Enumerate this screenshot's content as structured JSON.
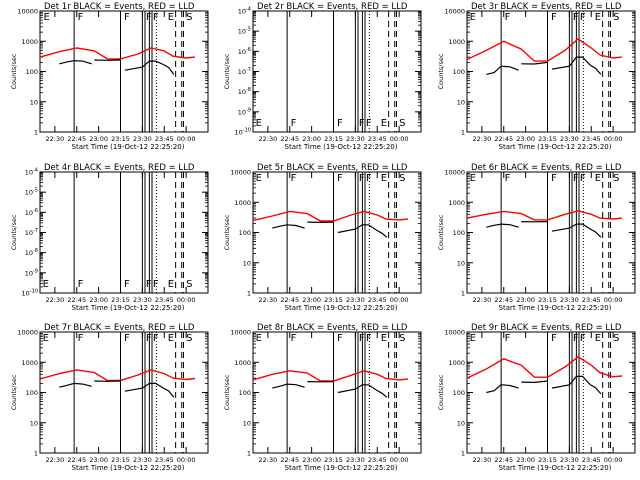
{
  "colors": {
    "background": "#ffffff",
    "events": "#000000",
    "lld": "#ff0000"
  },
  "time_ticks": [
    "22:30",
    "22:45",
    "23:00",
    "23:15",
    "23:30",
    "23:45",
    "00:00"
  ],
  "shared": {
    "xlabel": "Start Time (19-Oct-12 22:25:20)",
    "ylabel": "Counts/sec",
    "legend": "BLACK = Events, RED = LLD",
    "flare_markers": {
      "F": [
        22.72,
        23.25,
        23.5,
        23.58
      ],
      "E": [
        23.75
      ],
      "S": [
        23.97
      ],
      "dashed_lines": [
        23.88,
        23.95,
        23.97
      ],
      "dotted_line": 23.61
    }
  },
  "chart_data": [
    {
      "type": "line",
      "title": "Det 1r",
      "xlim": [
        22.33,
        24.25
      ],
      "ylim": [
        1,
        10000
      ],
      "yscale": "log",
      "yticks": [
        "1",
        "10",
        "100",
        "1000",
        "10000"
      ],
      "series": [
        {
          "name": "LLD",
          "color": "#ff0000",
          "x": [
            22.33,
            22.55,
            22.75,
            22.95,
            23.1,
            23.25,
            23.45,
            23.6,
            23.75,
            23.85,
            24.0,
            24.1
          ],
          "values": [
            300,
            450,
            600,
            480,
            260,
            260,
            380,
            600,
            480,
            320,
            280,
            300
          ]
        },
        {
          "name": "Events",
          "color": "#000000",
          "x": [
            22.55,
            22.72,
            22.92,
            22.95,
            23.25,
            23.3,
            23.5,
            23.65,
            23.8,
            23.86
          ],
          "values": [
            180,
            230,
            180,
            240,
            240,
            110,
            140,
            220,
            170,
            80
          ]
        }
      ]
    },
    {
      "type": "line",
      "title": "Det 2r",
      "xlim": [
        22.33,
        24.25
      ],
      "ylim": [
        1e-10,
        0.0001
      ],
      "yscale": "log",
      "yticks": [
        "10^-10",
        "10^-9",
        "10^-8",
        "10^-7",
        "10^-6",
        "10^-5",
        "10^-4"
      ],
      "series": []
    },
    {
      "type": "line",
      "title": "Det 3r",
      "xlim": [
        22.33,
        24.25
      ],
      "ylim": [
        1,
        10000
      ],
      "yscale": "log",
      "yticks": [
        "1",
        "10",
        "100",
        "1000",
        "10000"
      ],
      "series": [
        {
          "name": "LLD",
          "color": "#ff0000",
          "x": [
            22.33,
            22.55,
            22.75,
            22.95,
            23.1,
            23.25,
            23.45,
            23.6,
            23.75,
            23.85,
            24.0,
            24.1
          ],
          "values": [
            250,
            500,
            1000,
            550,
            220,
            220,
            500,
            1200,
            600,
            350,
            280,
            300
          ]
        },
        {
          "name": "Events",
          "color": "#000000",
          "x": [
            22.55,
            22.72,
            22.92,
            22.95,
            23.25,
            23.3,
            23.5,
            23.65,
            23.8,
            23.86
          ],
          "values": [
            80,
            150,
            110,
            180,
            200,
            120,
            150,
            300,
            160,
            80
          ]
        }
      ]
    },
    {
      "type": "line",
      "title": "Det 4r",
      "xlim": [
        22.33,
        24.25
      ],
      "ylim": [
        1e-10,
        0.0001
      ],
      "yscale": "log",
      "yticks": [
        "10^-10",
        "10^-9",
        "10^-8",
        "10^-7",
        "10^-6",
        "10^-5",
        "10^-4"
      ],
      "series": []
    },
    {
      "type": "line",
      "title": "Det 5r",
      "xlim": [
        22.33,
        24.25
      ],
      "ylim": [
        1,
        10000
      ],
      "yscale": "log",
      "yticks": [
        "1",
        "10",
        "100",
        "1000",
        "10000"
      ],
      "series": [
        {
          "name": "LLD",
          "color": "#ff0000",
          "x": [
            22.33,
            22.55,
            22.75,
            22.95,
            23.1,
            23.25,
            23.45,
            23.6,
            23.75,
            23.85,
            24.0,
            24.1
          ],
          "values": [
            250,
            350,
            500,
            420,
            240,
            240,
            380,
            500,
            380,
            280,
            260,
            280
          ]
        },
        {
          "name": "Events",
          "color": "#000000",
          "x": [
            22.55,
            22.72,
            22.92,
            22.95,
            23.25,
            23.3,
            23.5,
            23.65,
            23.8,
            23.86
          ],
          "values": [
            140,
            180,
            140,
            220,
            220,
            100,
            130,
            180,
            120,
            70
          ]
        }
      ]
    },
    {
      "type": "line",
      "title": "Det 6r",
      "xlim": [
        22.33,
        24.25
      ],
      "ylim": [
        1,
        10000
      ],
      "yscale": "log",
      "yticks": [
        "1",
        "10",
        "100",
        "1000",
        "10000"
      ],
      "series": [
        {
          "name": "LLD",
          "color": "#ff0000",
          "x": [
            22.33,
            22.55,
            22.75,
            22.95,
            23.1,
            23.25,
            23.45,
            23.6,
            23.75,
            23.85,
            24.0,
            24.1
          ],
          "values": [
            300,
            400,
            500,
            420,
            260,
            260,
            400,
            520,
            400,
            300,
            280,
            300
          ]
        },
        {
          "name": "Events",
          "color": "#000000",
          "x": [
            22.55,
            22.72,
            22.92,
            22.95,
            23.25,
            23.3,
            23.5,
            23.65,
            23.8,
            23.86
          ],
          "values": [
            150,
            190,
            150,
            230,
            230,
            110,
            140,
            190,
            130,
            70
          ]
        }
      ]
    },
    {
      "type": "line",
      "title": "Det 7r",
      "xlim": [
        22.33,
        24.25
      ],
      "ylim": [
        1,
        10000
      ],
      "yscale": "log",
      "yticks": [
        "1",
        "10",
        "100",
        "1000",
        "10000"
      ],
      "series": [
        {
          "name": "LLD",
          "color": "#ff0000",
          "x": [
            22.33,
            22.55,
            22.75,
            22.95,
            23.1,
            23.25,
            23.45,
            23.6,
            23.75,
            23.85,
            24.0,
            24.1
          ],
          "values": [
            280,
            420,
            560,
            460,
            250,
            250,
            380,
            560,
            420,
            300,
            270,
            290
          ]
        },
        {
          "name": "Events",
          "color": "#000000",
          "x": [
            22.55,
            22.72,
            22.92,
            22.95,
            23.25,
            23.3,
            23.5,
            23.65,
            23.8,
            23.86
          ],
          "values": [
            150,
            200,
            160,
            240,
            240,
            110,
            140,
            200,
            140,
            70
          ]
        }
      ]
    },
    {
      "type": "line",
      "title": "Det 8r",
      "xlim": [
        22.33,
        24.25
      ],
      "ylim": [
        1,
        10000
      ],
      "yscale": "log",
      "yticks": [
        "1",
        "10",
        "100",
        "1000",
        "10000"
      ],
      "series": [
        {
          "name": "LLD",
          "color": "#ff0000",
          "x": [
            22.33,
            22.55,
            22.75,
            22.95,
            23.1,
            23.25,
            23.45,
            23.6,
            23.75,
            23.85,
            24.0,
            24.1
          ],
          "values": [
            260,
            400,
            520,
            440,
            240,
            240,
            370,
            520,
            400,
            290,
            260,
            280
          ]
        },
        {
          "name": "Events",
          "color": "#000000",
          "x": [
            22.55,
            22.72,
            22.92,
            22.95,
            23.25,
            23.3,
            23.5,
            23.65,
            23.8,
            23.86
          ],
          "values": [
            140,
            190,
            150,
            230,
            230,
            100,
            130,
            180,
            120,
            70
          ]
        }
      ]
    },
    {
      "type": "line",
      "title": "Det 9r",
      "xlim": [
        22.33,
        24.25
      ],
      "ylim": [
        1,
        10000
      ],
      "yscale": "log",
      "yticks": [
        "1",
        "10",
        "100",
        "1000",
        "10000"
      ],
      "series": [
        {
          "name": "LLD",
          "color": "#ff0000",
          "x": [
            22.33,
            22.55,
            22.75,
            22.95,
            23.1,
            23.25,
            23.45,
            23.6,
            23.75,
            23.85,
            24.0,
            24.1
          ],
          "values": [
            300,
            600,
            1300,
            800,
            320,
            320,
            700,
            1500,
            800,
            450,
            330,
            350
          ]
        },
        {
          "name": "Events",
          "color": "#000000",
          "x": [
            22.55,
            22.72,
            22.92,
            22.95,
            23.25,
            23.3,
            23.5,
            23.65,
            23.8,
            23.86
          ],
          "values": [
            100,
            180,
            140,
            220,
            240,
            140,
            180,
            340,
            180,
            90
          ]
        }
      ]
    }
  ]
}
